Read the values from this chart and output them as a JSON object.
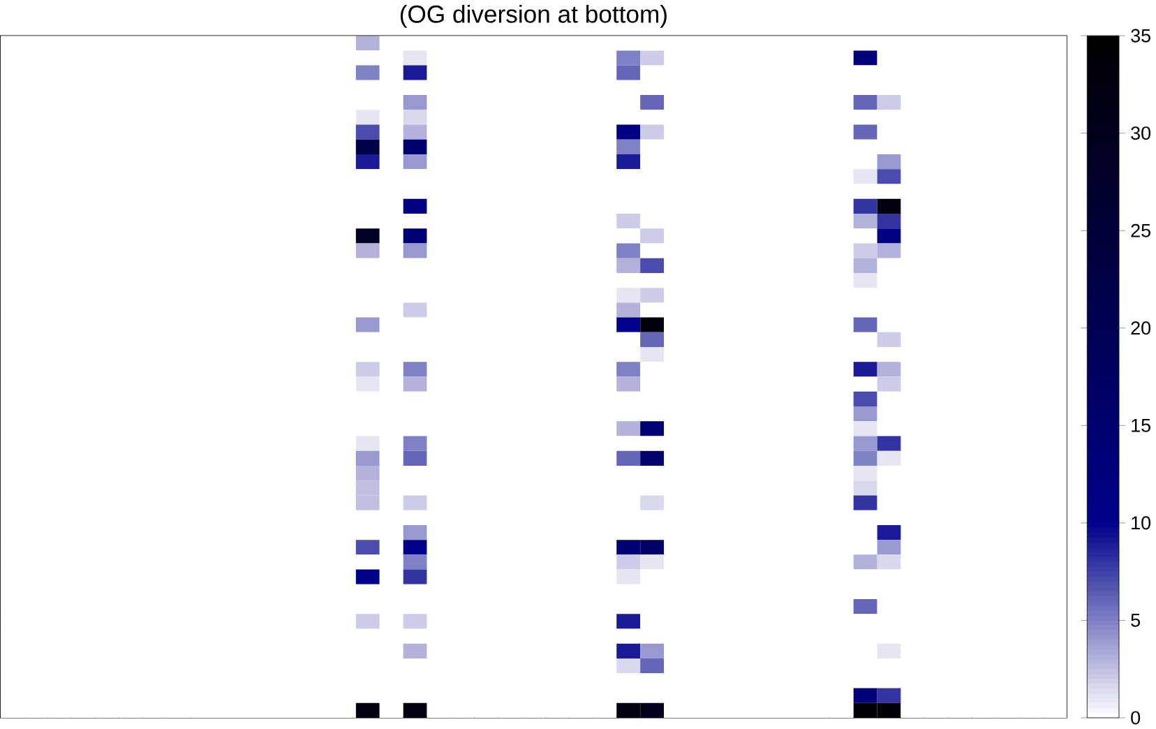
{
  "chart_data": {
    "type": "heatmap",
    "title": "(OG diversion at bottom)",
    "categories": [
      null,
      null,
      null,
      null,
      null,
      null,
      null,
      null,
      null,
      null,
      null,
      null,
      null,
      null,
      null,
      null,
      null,
      null,
      null,
      null,
      null,
      null,
      null,
      null,
      null,
      null,
      null,
      null,
      null,
      null,
      null,
      null,
      null,
      null,
      null,
      null,
      null,
      null,
      null,
      null,
      null,
      null,
      null,
      null,
      null
    ],
    "y_categories": [
      null,
      null,
      null,
      null,
      null,
      null,
      null,
      null,
      null,
      null,
      null,
      null,
      null,
      null,
      null,
      null,
      null,
      null,
      null,
      null,
      null,
      null,
      null,
      null,
      null,
      null,
      null,
      null,
      null,
      null,
      null,
      null,
      null,
      null,
      null,
      null,
      null,
      null,
      null,
      null,
      null,
      null,
      null,
      null,
      null,
      null
    ],
    "clim": [
      0,
      35
    ],
    "cticks": [
      0,
      5,
      10,
      15,
      20,
      25,
      30,
      35
    ],
    "cells": [
      [
        0,
        0,
        0,
        0,
        0,
        0,
        0,
        0,
        0,
        0,
        0,
        0,
        0,
        0,
        0,
        3,
        0,
        0,
        0,
        0,
        0,
        0,
        0,
        0,
        0,
        0,
        0,
        0,
        0,
        0,
        0,
        0,
        0,
        0,
        0,
        0,
        0,
        0,
        0,
        0,
        0,
        0,
        0,
        0,
        0
      ],
      [
        0,
        0,
        0,
        0,
        0,
        0,
        0,
        0,
        0,
        0,
        0,
        0,
        0,
        0,
        0,
        0,
        0,
        1,
        0,
        0,
        0,
        0,
        0,
        0,
        0,
        0,
        5,
        2,
        0,
        0,
        0,
        0,
        0,
        0,
        0,
        0,
        13,
        0,
        0,
        0,
        0,
        0,
        0,
        0,
        0
      ],
      [
        0,
        0,
        0,
        0,
        0,
        0,
        0,
        0,
        0,
        0,
        0,
        0,
        0,
        0,
        0,
        5,
        0,
        9,
        0,
        0,
        0,
        0,
        0,
        0,
        0,
        0,
        6,
        0,
        0,
        0,
        0,
        0,
        0,
        0,
        0,
        0,
        0,
        0,
        0,
        0,
        0,
        0,
        0,
        0,
        0
      ],
      [
        0,
        0,
        0,
        0,
        0,
        0,
        0,
        0,
        0,
        0,
        0,
        0,
        0,
        0,
        0,
        0,
        0,
        0,
        0,
        0,
        0,
        0,
        0,
        0,
        0,
        0,
        0,
        0,
        0,
        0,
        0,
        0,
        0,
        0,
        0,
        0,
        0,
        0,
        0,
        0,
        0,
        0,
        0,
        0,
        0
      ],
      [
        0,
        0,
        0,
        0,
        0,
        0,
        0,
        0,
        0,
        0,
        0,
        0,
        0,
        0,
        0,
        0,
        0,
        4,
        0,
        0,
        0,
        0,
        0,
        0,
        0,
        0,
        0,
        6,
        0,
        0,
        0,
        0,
        0,
        0,
        0,
        0,
        6,
        2,
        0,
        0,
        0,
        0,
        0,
        0,
        0
      ],
      [
        0,
        0,
        0,
        0,
        0,
        0,
        0,
        0,
        0,
        0,
        0,
        0,
        0,
        0,
        0,
        1,
        0,
        1.5,
        0,
        0,
        0,
        0,
        0,
        0,
        0,
        0,
        0,
        0,
        0,
        0,
        0,
        0,
        0,
        0,
        0,
        0,
        0,
        0,
        0,
        0,
        0,
        0,
        0,
        0,
        0
      ],
      [
        0,
        0,
        0,
        0,
        0,
        0,
        0,
        0,
        0,
        0,
        0,
        0,
        0,
        0,
        0,
        7,
        0,
        3,
        0,
        0,
        0,
        0,
        0,
        0,
        0,
        0,
        11,
        2,
        0,
        0,
        0,
        0,
        0,
        0,
        0,
        0,
        6,
        0,
        0,
        0,
        0,
        0,
        0,
        0,
        0
      ],
      [
        0,
        0,
        0,
        0,
        0,
        0,
        0,
        0,
        0,
        0,
        0,
        0,
        0,
        0,
        0,
        22,
        0,
        15,
        0,
        0,
        0,
        0,
        0,
        0,
        0,
        0,
        5,
        0,
        0,
        0,
        0,
        0,
        0,
        0,
        0,
        0,
        0,
        0,
        0,
        0,
        0,
        0,
        0,
        0,
        0
      ],
      [
        0,
        0,
        0,
        0,
        0,
        0,
        0,
        0,
        0,
        0,
        0,
        0,
        0,
        0,
        0,
        9,
        0,
        4,
        0,
        0,
        0,
        0,
        0,
        0,
        0,
        0,
        9,
        0,
        0,
        0,
        0,
        0,
        0,
        0,
        0,
        0,
        0,
        4,
        0,
        0,
        0,
        0,
        0,
        0,
        0
      ],
      [
        0,
        0,
        0,
        0,
        0,
        0,
        0,
        0,
        0,
        0,
        0,
        0,
        0,
        0,
        0,
        0,
        0,
        0,
        0,
        0,
        0,
        0,
        0,
        0,
        0,
        0,
        0,
        0,
        0,
        0,
        0,
        0,
        0,
        0,
        0,
        0,
        1,
        7,
        0,
        0,
        0,
        0,
        0,
        0,
        0
      ],
      [
        0,
        0,
        0,
        0,
        0,
        0,
        0,
        0,
        0,
        0,
        0,
        0,
        0,
        0,
        0,
        0,
        0,
        0,
        0,
        0,
        0,
        0,
        0,
        0,
        0,
        0,
        0,
        0,
        0,
        0,
        0,
        0,
        0,
        0,
        0,
        0,
        0,
        0,
        0,
        0,
        0,
        0,
        0,
        0,
        0
      ],
      [
        0,
        0,
        0,
        0,
        0,
        0,
        0,
        0,
        0,
        0,
        0,
        0,
        0,
        0,
        0,
        0,
        0,
        12,
        0,
        0,
        0,
        0,
        0,
        0,
        0,
        0,
        0,
        0,
        0,
        0,
        0,
        0,
        0,
        0,
        0,
        0,
        8,
        32,
        0,
        0,
        0,
        0,
        0,
        0,
        0
      ],
      [
        0,
        0,
        0,
        0,
        0,
        0,
        0,
        0,
        0,
        0,
        0,
        0,
        0,
        0,
        0,
        0,
        0,
        0,
        0,
        0,
        0,
        0,
        0,
        0,
        0,
        0,
        2,
        0,
        0,
        0,
        0,
        0,
        0,
        0,
        0,
        0,
        3,
        8,
        0,
        0,
        0,
        0,
        0,
        0,
        0
      ],
      [
        0,
        0,
        0,
        0,
        0,
        0,
        0,
        0,
        0,
        0,
        0,
        0,
        0,
        0,
        0,
        28,
        0,
        14,
        0,
        0,
        0,
        0,
        0,
        0,
        0,
        0,
        0,
        2,
        0,
        0,
        0,
        0,
        0,
        0,
        0,
        0,
        0,
        12,
        0,
        0,
        0,
        0,
        0,
        0,
        0
      ],
      [
        0,
        0,
        0,
        0,
        0,
        0,
        0,
        0,
        0,
        0,
        0,
        0,
        0,
        0,
        0,
        3,
        0,
        4,
        0,
        0,
        0,
        0,
        0,
        0,
        0,
        0,
        5,
        0,
        0,
        0,
        0,
        0,
        0,
        0,
        0,
        0,
        2,
        3,
        0,
        0,
        0,
        0,
        0,
        0,
        0
      ],
      [
        0,
        0,
        0,
        0,
        0,
        0,
        0,
        0,
        0,
        0,
        0,
        0,
        0,
        0,
        0,
        0,
        0,
        0,
        0,
        0,
        0,
        0,
        0,
        0,
        0,
        0,
        3,
        7,
        0,
        0,
        0,
        0,
        0,
        0,
        0,
        0,
        3,
        0,
        0,
        0,
        0,
        0,
        0,
        0,
        0
      ],
      [
        0,
        0,
        0,
        0,
        0,
        0,
        0,
        0,
        0,
        0,
        0,
        0,
        0,
        0,
        0,
        0,
        0,
        0,
        0,
        0,
        0,
        0,
        0,
        0,
        0,
        0,
        0,
        0,
        0,
        0,
        0,
        0,
        0,
        0,
        0,
        0,
        1,
        0,
        0,
        0,
        0,
        0,
        0,
        0,
        0
      ],
      [
        0,
        0,
        0,
        0,
        0,
        0,
        0,
        0,
        0,
        0,
        0,
        0,
        0,
        0,
        0,
        0,
        0,
        0,
        0,
        0,
        0,
        0,
        0,
        0,
        0,
        0,
        1,
        2,
        0,
        0,
        0,
        0,
        0,
        0,
        0,
        0,
        0,
        0,
        0,
        0,
        0,
        0,
        0,
        0,
        0
      ],
      [
        0,
        0,
        0,
        0,
        0,
        0,
        0,
        0,
        0,
        0,
        0,
        0,
        0,
        0,
        0,
        0,
        0,
        2,
        0,
        0,
        0,
        0,
        0,
        0,
        0,
        0,
        3,
        0,
        0,
        0,
        0,
        0,
        0,
        0,
        0,
        0,
        0,
        0,
        0,
        0,
        0,
        0,
        0,
        0,
        0
      ],
      [
        0,
        0,
        0,
        0,
        0,
        0,
        0,
        0,
        0,
        0,
        0,
        0,
        0,
        0,
        0,
        4,
        0,
        0,
        0,
        0,
        0,
        0,
        0,
        0,
        0,
        0,
        10,
        33,
        0,
        0,
        0,
        0,
        0,
        0,
        0,
        0,
        6,
        0,
        0,
        0,
        0,
        0,
        0,
        0,
        0
      ],
      [
        0,
        0,
        0,
        0,
        0,
        0,
        0,
        0,
        0,
        0,
        0,
        0,
        0,
        0,
        0,
        0,
        0,
        0,
        0,
        0,
        0,
        0,
        0,
        0,
        0,
        0,
        0,
        6,
        0,
        0,
        0,
        0,
        0,
        0,
        0,
        0,
        0,
        2,
        0,
        0,
        0,
        0,
        0,
        0,
        0
      ],
      [
        0,
        0,
        0,
        0,
        0,
        0,
        0,
        0,
        0,
        0,
        0,
        0,
        0,
        0,
        0,
        0,
        0,
        0,
        0,
        0,
        0,
        0,
        0,
        0,
        0,
        0,
        0,
        1,
        0,
        0,
        0,
        0,
        0,
        0,
        0,
        0,
        0,
        0,
        0,
        0,
        0,
        0,
        0,
        0,
        0
      ],
      [
        0,
        0,
        0,
        0,
        0,
        0,
        0,
        0,
        0,
        0,
        0,
        0,
        0,
        0,
        0,
        2,
        0,
        5,
        0,
        0,
        0,
        0,
        0,
        0,
        0,
        0,
        5,
        0,
        0,
        0,
        0,
        0,
        0,
        0,
        0,
        0,
        9,
        3,
        0,
        0,
        0,
        0,
        0,
        0,
        0
      ],
      [
        0,
        0,
        0,
        0,
        0,
        0,
        0,
        0,
        0,
        0,
        0,
        0,
        0,
        0,
        0,
        1,
        0,
        3,
        0,
        0,
        0,
        0,
        0,
        0,
        0,
        0,
        3,
        0,
        0,
        0,
        0,
        0,
        0,
        0,
        0,
        0,
        0,
        2,
        0,
        0,
        0,
        0,
        0,
        0,
        0
      ],
      [
        0,
        0,
        0,
        0,
        0,
        0,
        0,
        0,
        0,
        0,
        0,
        0,
        0,
        0,
        0,
        0,
        0,
        0,
        0,
        0,
        0,
        0,
        0,
        0,
        0,
        0,
        0,
        0,
        0,
        0,
        0,
        0,
        0,
        0,
        0,
        0,
        7,
        0,
        0,
        0,
        0,
        0,
        0,
        0,
        0
      ],
      [
        0,
        0,
        0,
        0,
        0,
        0,
        0,
        0,
        0,
        0,
        0,
        0,
        0,
        0,
        0,
        0,
        0,
        0,
        0,
        0,
        0,
        0,
        0,
        0,
        0,
        0,
        0,
        0,
        0,
        0,
        0,
        0,
        0,
        0,
        0,
        0,
        4,
        0,
        0,
        0,
        0,
        0,
        0,
        0,
        0
      ],
      [
        0,
        0,
        0,
        0,
        0,
        0,
        0,
        0,
        0,
        0,
        0,
        0,
        0,
        0,
        0,
        0,
        0,
        0,
        0,
        0,
        0,
        0,
        0,
        0,
        0,
        0,
        3,
        14,
        0,
        0,
        0,
        0,
        0,
        0,
        0,
        0,
        1,
        0,
        0,
        0,
        0,
        0,
        0,
        0,
        0
      ],
      [
        0,
        0,
        0,
        0,
        0,
        0,
        0,
        0,
        0,
        0,
        0,
        0,
        0,
        0,
        0,
        1,
        0,
        5,
        0,
        0,
        0,
        0,
        0,
        0,
        0,
        0,
        0,
        0,
        0,
        0,
        0,
        0,
        0,
        0,
        0,
        0,
        4,
        8,
        0,
        0,
        0,
        0,
        0,
        0,
        0
      ],
      [
        0,
        0,
        0,
        0,
        0,
        0,
        0,
        0,
        0,
        0,
        0,
        0,
        0,
        0,
        0,
        4,
        0,
        6,
        0,
        0,
        0,
        0,
        0,
        0,
        0,
        0,
        6,
        15,
        0,
        0,
        0,
        0,
        0,
        0,
        0,
        0,
        5,
        1,
        0,
        0,
        0,
        0,
        0,
        0,
        0
      ],
      [
        0,
        0,
        0,
        0,
        0,
        0,
        0,
        0,
        0,
        0,
        0,
        0,
        0,
        0,
        0,
        3,
        0,
        0,
        0,
        0,
        0,
        0,
        0,
        0,
        0,
        0,
        0,
        0,
        0,
        0,
        0,
        0,
        0,
        0,
        0,
        0,
        1,
        0,
        0,
        0,
        0,
        0,
        0,
        0,
        0
      ],
      [
        0,
        0,
        0,
        0,
        0,
        0,
        0,
        0,
        0,
        0,
        0,
        0,
        0,
        0,
        0,
        2.5,
        0,
        0,
        0,
        0,
        0,
        0,
        0,
        0,
        0,
        0,
        0,
        0,
        0,
        0,
        0,
        0,
        0,
        0,
        0,
        0,
        1.5,
        0,
        0,
        0,
        0,
        0,
        0,
        0,
        0
      ],
      [
        0,
        0,
        0,
        0,
        0,
        0,
        0,
        0,
        0,
        0,
        0,
        0,
        0,
        0,
        0,
        2.5,
        0,
        2,
        0,
        0,
        0,
        0,
        0,
        0,
        0,
        0,
        0,
        1.5,
        0,
        0,
        0,
        0,
        0,
        0,
        0,
        0,
        8,
        0,
        0,
        0,
        0,
        0,
        0,
        0,
        0
      ],
      [
        0,
        0,
        0,
        0,
        0,
        0,
        0,
        0,
        0,
        0,
        0,
        0,
        0,
        0,
        0,
        0,
        0,
        0,
        0,
        0,
        0,
        0,
        0,
        0,
        0,
        0,
        0,
        0,
        0,
        0,
        0,
        0,
        0,
        0,
        0,
        0,
        0,
        0,
        0,
        0,
        0,
        0,
        0,
        0,
        0
      ],
      [
        0,
        0,
        0,
        0,
        0,
        0,
        0,
        0,
        0,
        0,
        0,
        0,
        0,
        0,
        0,
        0,
        0,
        4,
        0,
        0,
        0,
        0,
        0,
        0,
        0,
        0,
        0,
        0,
        0,
        0,
        0,
        0,
        0,
        0,
        0,
        0,
        0,
        9,
        0,
        0,
        0,
        0,
        0,
        0,
        0
      ],
      [
        0,
        0,
        0,
        0,
        0,
        0,
        0,
        0,
        0,
        0,
        0,
        0,
        0,
        0,
        0,
        7,
        0,
        10,
        0,
        0,
        0,
        0,
        0,
        0,
        0,
        0,
        14,
        16,
        0,
        0,
        0,
        0,
        0,
        0,
        0,
        0,
        0,
        4,
        0,
        0,
        0,
        0,
        0,
        0,
        0
      ],
      [
        0,
        0,
        0,
        0,
        0,
        0,
        0,
        0,
        0,
        0,
        0,
        0,
        0,
        0,
        0,
        0,
        0,
        5,
        0,
        0,
        0,
        0,
        0,
        0,
        0,
        0,
        2,
        1,
        0,
        0,
        0,
        0,
        0,
        0,
        0,
        0,
        3,
        1.5,
        0,
        0,
        0,
        0,
        0,
        0,
        0
      ],
      [
        0,
        0,
        0,
        0,
        0,
        0,
        0,
        0,
        0,
        0,
        0,
        0,
        0,
        0,
        0,
        10,
        0,
        8,
        0,
        0,
        0,
        0,
        0,
        0,
        0,
        0,
        1,
        0,
        0,
        0,
        0,
        0,
        0,
        0,
        0,
        0,
        0,
        0,
        0,
        0,
        0,
        0,
        0,
        0,
        0
      ],
      [
        0,
        0,
        0,
        0,
        0,
        0,
        0,
        0,
        0,
        0,
        0,
        0,
        0,
        0,
        0,
        0,
        0,
        0,
        0,
        0,
        0,
        0,
        0,
        0,
        0,
        0,
        0,
        0,
        0,
        0,
        0,
        0,
        0,
        0,
        0,
        0,
        0,
        0,
        0,
        0,
        0,
        0,
        0,
        0,
        0
      ],
      [
        0,
        0,
        0,
        0,
        0,
        0,
        0,
        0,
        0,
        0,
        0,
        0,
        0,
        0,
        0,
        0,
        0,
        0,
        0,
        0,
        0,
        0,
        0,
        0,
        0,
        0,
        0,
        0,
        0,
        0,
        0,
        0,
        0,
        0,
        0,
        0,
        6,
        0,
        0,
        0,
        0,
        0,
        0,
        0,
        0
      ],
      [
        0,
        0,
        0,
        0,
        0,
        0,
        0,
        0,
        0,
        0,
        0,
        0,
        0,
        0,
        0,
        2,
        0,
        2,
        0,
        0,
        0,
        0,
        0,
        0,
        0,
        0,
        9,
        0,
        0,
        0,
        0,
        0,
        0,
        0,
        0,
        0,
        0,
        0,
        0,
        0,
        0,
        0,
        0,
        0,
        0
      ],
      [
        0,
        0,
        0,
        0,
        0,
        0,
        0,
        0,
        0,
        0,
        0,
        0,
        0,
        0,
        0,
        0,
        0,
        0,
        0,
        0,
        0,
        0,
        0,
        0,
        0,
        0,
        0,
        0,
        0,
        0,
        0,
        0,
        0,
        0,
        0,
        0,
        0,
        0,
        0,
        0,
        0,
        0,
        0,
        0,
        0
      ],
      [
        0,
        0,
        0,
        0,
        0,
        0,
        0,
        0,
        0,
        0,
        0,
        0,
        0,
        0,
        0,
        0,
        0,
        3,
        0,
        0,
        0,
        0,
        0,
        0,
        0,
        0,
        9,
        4,
        0,
        0,
        0,
        0,
        0,
        0,
        0,
        0,
        0,
        1,
        0,
        0,
        0,
        0,
        0,
        0,
        0
      ],
      [
        0,
        0,
        0,
        0,
        0,
        0,
        0,
        0,
        0,
        0,
        0,
        0,
        0,
        0,
        0,
        0,
        0,
        0,
        0,
        0,
        0,
        0,
        0,
        0,
        0,
        0,
        1.5,
        6,
        0,
        0,
        0,
        0,
        0,
        0,
        0,
        0,
        0,
        0,
        0,
        0,
        0,
        0,
        0,
        0,
        0
      ],
      [
        0,
        0,
        0,
        0,
        0,
        0,
        0,
        0,
        0,
        0,
        0,
        0,
        0,
        0,
        0,
        0,
        0,
        0,
        0,
        0,
        0,
        0,
        0,
        0,
        0,
        0,
        0,
        0,
        0,
        0,
        0,
        0,
        0,
        0,
        0,
        0,
        0,
        0,
        0,
        0,
        0,
        0,
        0,
        0,
        0
      ],
      [
        0,
        0,
        0,
        0,
        0,
        0,
        0,
        0,
        0,
        0,
        0,
        0,
        0,
        0,
        0,
        0,
        0,
        0,
        0,
        0,
        0,
        0,
        0,
        0,
        0,
        0,
        0,
        0,
        0,
        0,
        0,
        0,
        0,
        0,
        0,
        0,
        13,
        8,
        0,
        0,
        0,
        0,
        0,
        0,
        0
      ],
      [
        0,
        0,
        0,
        0,
        0,
        0,
        0,
        0,
        0,
        0,
        0,
        0,
        0,
        0,
        0,
        32,
        0,
        32,
        0,
        0,
        0,
        0,
        0,
        0,
        0,
        0,
        32,
        30,
        0,
        0,
        0,
        0,
        0,
        0,
        0,
        0,
        34,
        34,
        0,
        0,
        0,
        0,
        0,
        0,
        0
      ]
    ]
  }
}
